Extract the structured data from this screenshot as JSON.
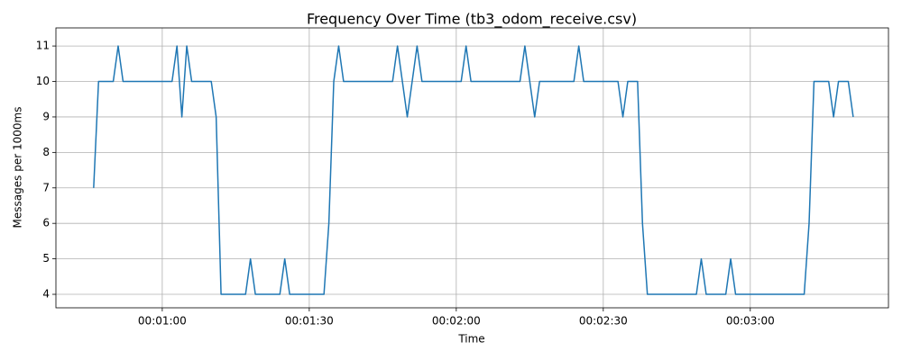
{
  "chart_data": {
    "type": "line",
    "title": "Frequency Over Time (tb3_odom_receive.csv)",
    "x_label": "Time",
    "y_label": "Messages per 1000ms",
    "color": "#1f77b4",
    "grid": true,
    "x": [
      46,
      47,
      48,
      49,
      50,
      51,
      52,
      53,
      54,
      55,
      56,
      57,
      58,
      59,
      60,
      61,
      62,
      63,
      64,
      65,
      66,
      67,
      68,
      69,
      70,
      71,
      72,
      73,
      74,
      75,
      76,
      77,
      78,
      79,
      80,
      81,
      82,
      83,
      84,
      85,
      86,
      87,
      88,
      89,
      90,
      91,
      92,
      93,
      94,
      95,
      96,
      97,
      98,
      99,
      100,
      101,
      102,
      103,
      104,
      105,
      106,
      107,
      108,
      109,
      110,
      111,
      112,
      113,
      114,
      115,
      116,
      117,
      118,
      119,
      120,
      121,
      122,
      123,
      124,
      125,
      126,
      127,
      128,
      129,
      130,
      131,
      132,
      133,
      134,
      135,
      136,
      137,
      138,
      139,
      140,
      141,
      142,
      143,
      144,
      145,
      146,
      147,
      148,
      149,
      150,
      151,
      152,
      153,
      154,
      155,
      156,
      157,
      158,
      159,
      160,
      161,
      162,
      163,
      164,
      165,
      166,
      167,
      168,
      169,
      170,
      171,
      172,
      173,
      174,
      175,
      176,
      177,
      178,
      179,
      180,
      181,
      182,
      183,
      184,
      185,
      186,
      187,
      188,
      189,
      190,
      191,
      192,
      193,
      194,
      195,
      196,
      197,
      198,
      199,
      200,
      201
    ],
    "values": [
      7,
      10,
      10,
      10,
      10,
      11,
      10,
      10,
      10,
      10,
      10,
      10,
      10,
      10,
      10,
      10,
      10,
      11,
      9,
      11,
      10,
      10,
      10,
      10,
      10,
      9,
      4,
      4,
      4,
      4,
      4,
      4,
      5,
      4,
      4,
      4,
      4,
      4,
      4,
      5,
      4,
      4,
      4,
      4,
      4,
      4,
      4,
      4,
      6,
      10,
      11,
      10,
      10,
      10,
      10,
      10,
      10,
      10,
      10,
      10,
      10,
      10,
      11,
      10,
      9,
      10,
      11,
      10,
      10,
      10,
      10,
      10,
      10,
      10,
      10,
      10,
      11,
      10,
      10,
      10,
      10,
      10,
      10,
      10,
      10,
      10,
      10,
      10,
      11,
      10,
      9,
      10,
      10,
      10,
      10,
      10,
      10,
      10,
      10,
      11,
      10,
      10,
      10,
      10,
      10,
      10,
      10,
      10,
      9,
      10,
      10,
      10,
      6,
      4,
      4,
      4,
      4,
      4,
      4,
      4,
      4,
      4,
      4,
      4,
      5,
      4,
      4,
      4,
      4,
      4,
      5,
      4,
      4,
      4,
      4,
      4,
      4,
      4,
      4,
      4,
      4,
      4,
      4,
      4,
      4,
      4,
      6,
      10,
      10,
      10,
      10,
      9,
      10,
      10,
      10,
      9
    ],
    "xlim": [
      38.3,
      208.2
    ],
    "ylim": [
      3.62,
      11.51
    ],
    "xticks": [
      {
        "value": 60,
        "label": "00:01:00"
      },
      {
        "value": 90,
        "label": "00:01:30"
      },
      {
        "value": 120,
        "label": "00:02:00"
      },
      {
        "value": 150,
        "label": "00:02:30"
      },
      {
        "value": 180,
        "label": "00:03:00"
      }
    ],
    "yticks": [
      4,
      5,
      6,
      7,
      8,
      9,
      10,
      11
    ]
  }
}
